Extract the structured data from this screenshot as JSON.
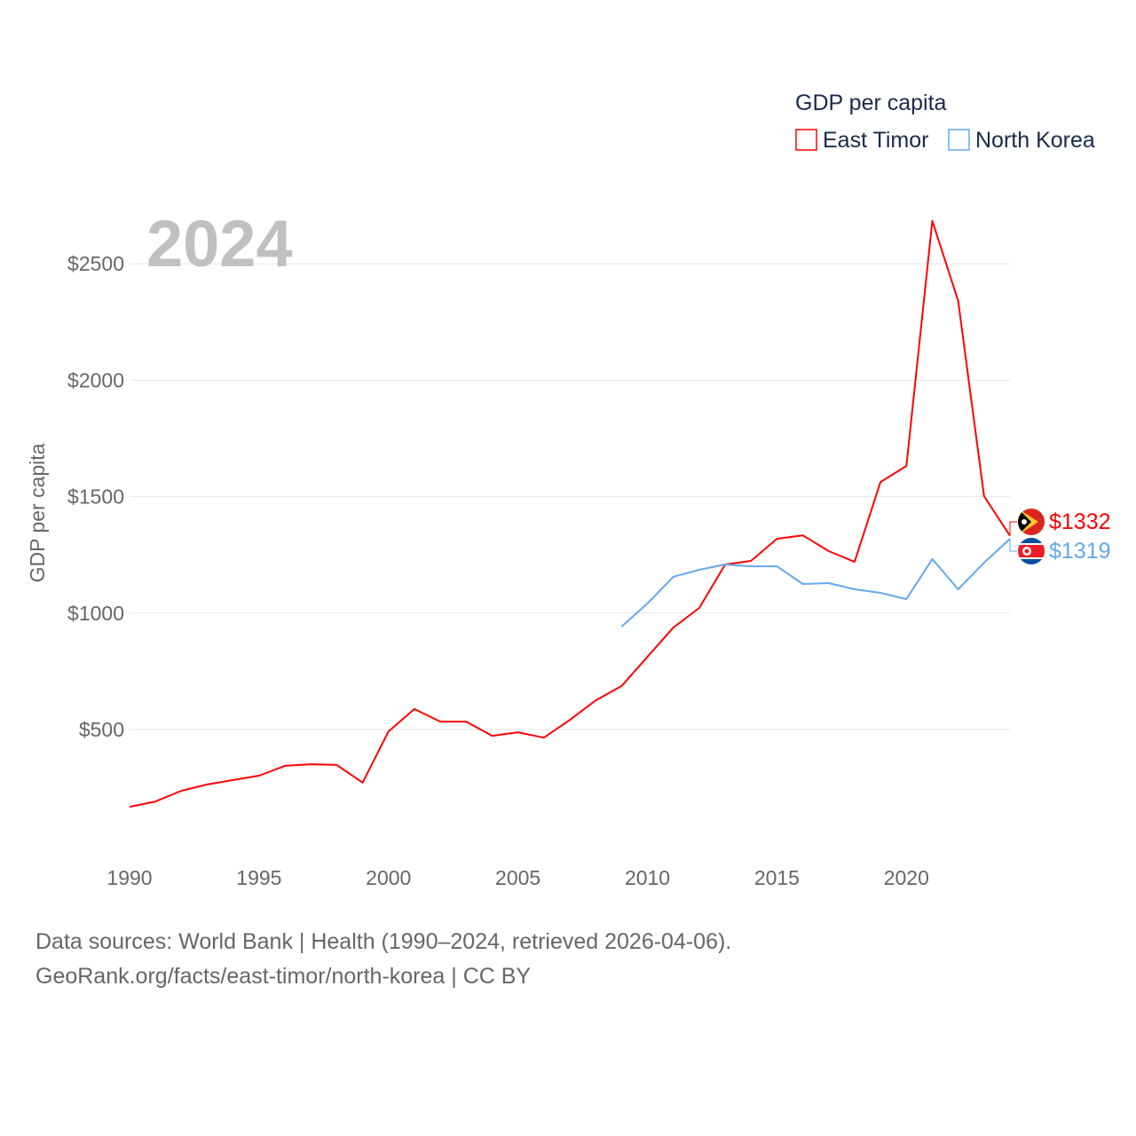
{
  "chart_data": {
    "type": "line",
    "title": "GDP per capita",
    "ylabel": "GDP per capita",
    "xlabel": "",
    "year_overlay": "2024",
    "xlim": [
      1990,
      2024
    ],
    "ylim": [
      0,
      2700
    ],
    "x_ticks": [
      1990,
      1995,
      2000,
      2005,
      2010,
      2015,
      2020
    ],
    "y_ticks": [
      500,
      1000,
      1500,
      2000,
      2500
    ],
    "y_tick_labels": [
      "$500",
      "$1000",
      "$1500",
      "$2000",
      "$2500"
    ],
    "grid": true,
    "legend_position": "top-right",
    "series": [
      {
        "name": "East Timor",
        "color": "#ff0000",
        "end_label": "$1332",
        "flag": "east-timor-flag",
        "x": [
          1990,
          1991,
          1992,
          1993,
          1994,
          1995,
          1996,
          1997,
          1998,
          1999,
          2000,
          2001,
          2002,
          2003,
          2004,
          2005,
          2006,
          2007,
          2008,
          2009,
          2010,
          2011,
          2012,
          2013,
          2014,
          2015,
          2016,
          2017,
          2018,
          2019,
          2020,
          2021,
          2022,
          2023,
          2024
        ],
        "values": [
          168,
          191,
          237,
          264,
          283,
          302,
          344,
          351,
          348,
          272,
          492,
          588,
          534,
          534,
          473,
          488,
          465,
          541,
          625,
          687,
          812,
          938,
          1022,
          1209,
          1224,
          1319,
          1334,
          1266,
          1220,
          1563,
          1632,
          2684,
          2341,
          1502,
          1332
        ]
      },
      {
        "name": "North Korea",
        "color": "#64a8ec",
        "end_label": "$1319",
        "flag": "north-korea-flag",
        "x": [
          2009,
          2010,
          2011,
          2012,
          2013,
          2014,
          2015,
          2016,
          2017,
          2018,
          2019,
          2020,
          2021,
          2022,
          2023,
          2024
        ],
        "values": [
          942,
          1041,
          1156,
          1186,
          1209,
          1201,
          1201,
          1125,
          1129,
          1102,
          1087,
          1060,
          1232,
          1102,
          1216,
          1319
        ]
      }
    ]
  },
  "footer": {
    "line1": "Data sources: World Bank | Health (1990–2024, retrieved 2026-04-06).",
    "line2": "GeoRank.org/facts/east-timor/north-korea | CC BY"
  }
}
